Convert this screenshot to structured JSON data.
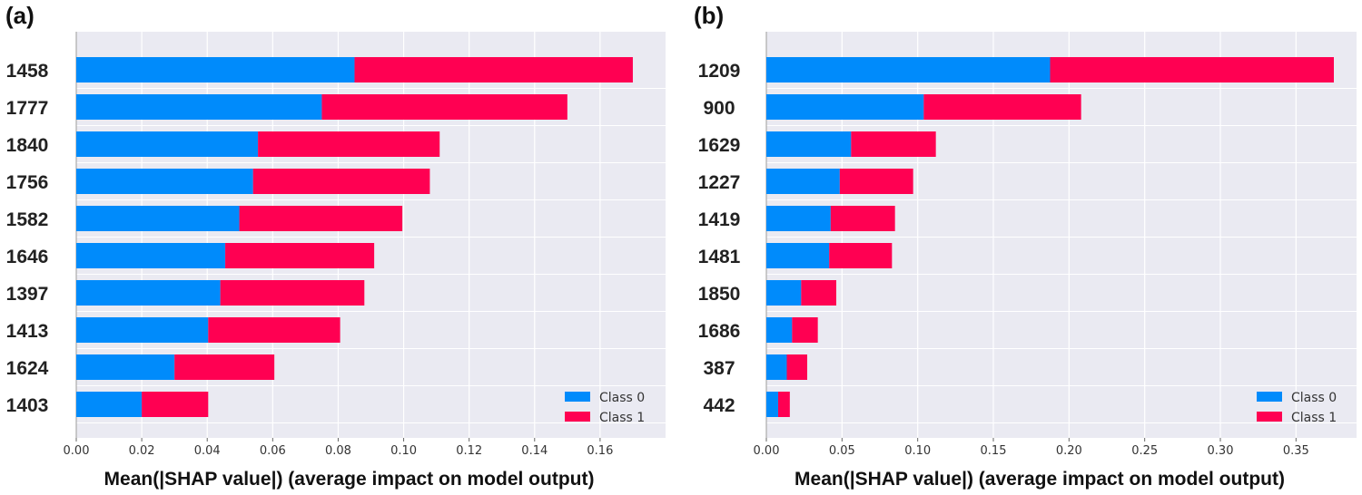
{
  "chart_data": [
    {
      "panel": "(a)",
      "type": "bar",
      "orientation": "horizontal",
      "stacked": true,
      "categories": [
        "1458",
        "1777",
        "1840",
        "1756",
        "1582",
        "1646",
        "1397",
        "1413",
        "1624",
        "1403"
      ],
      "series": [
        {
          "name": "Class 0",
          "color": "#008bfb",
          "values": [
            0.085,
            0.075,
            0.0555,
            0.054,
            0.0498,
            0.0455,
            0.044,
            0.0403,
            0.03,
            0.02
          ]
        },
        {
          "name": "Class 1",
          "color": "#ff0052",
          "values": [
            0.085,
            0.075,
            0.0555,
            0.054,
            0.0498,
            0.0455,
            0.044,
            0.0403,
            0.0305,
            0.0203
          ]
        }
      ],
      "xlabel": "Mean(|SHAP value|) (average impact on model output)",
      "xlim": [
        0,
        0.18
      ],
      "xticks": [
        "0.00",
        "0.02",
        "0.04",
        "0.06",
        "0.08",
        "0.10",
        "0.12",
        "0.14",
        "0.16"
      ],
      "grid": true,
      "legend": "bottom-right"
    },
    {
      "panel": "(b)",
      "type": "bar",
      "orientation": "horizontal",
      "stacked": true,
      "categories": [
        "1209",
        "900",
        "1629",
        "1227",
        "1419",
        "1481",
        "1850",
        "1686",
        "387",
        "442"
      ],
      "series": [
        {
          "name": "Class 0",
          "color": "#008bfb",
          "values": [
            0.1875,
            0.104,
            0.056,
            0.0485,
            0.0425,
            0.0415,
            0.023,
            0.017,
            0.0135,
            0.0078
          ]
        },
        {
          "name": "Class 1",
          "color": "#ff0052",
          "values": [
            0.1875,
            0.104,
            0.056,
            0.0485,
            0.0425,
            0.0415,
            0.0232,
            0.017,
            0.0135,
            0.0077
          ]
        }
      ],
      "xlabel": "Mean(|SHAP value|) (average impact on model output)",
      "xlim": [
        0,
        0.39
      ],
      "xticks": [
        "0.00",
        "0.05",
        "0.10",
        "0.15",
        "0.20",
        "0.25",
        "0.30",
        "0.35"
      ],
      "grid": true,
      "legend": "bottom-right"
    }
  ]
}
